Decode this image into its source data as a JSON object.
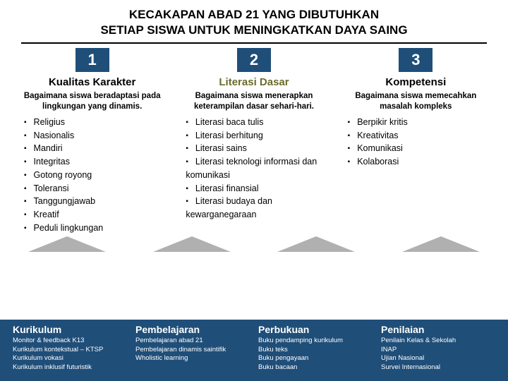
{
  "header": {
    "line1": "KECAKAPAN ABAD 21 YANG DIBUTUHKAN",
    "line2": "SETIAP SISWA UNTUK MENINGKATKAN DAYA SAING"
  },
  "columns": [
    {
      "num": "1",
      "title": "Kualitas Karakter",
      "desc": "Bagaimana siswa beradaptasi pada lingkungan yang dinamis.",
      "items": [
        "Religius",
        "Nasionalis",
        "Mandiri",
        "Integritas",
        "Gotong royong",
        "Toleransi",
        "Tanggungjawab",
        "Kreatif",
        "Peduli lingkungan"
      ]
    },
    {
      "num": "2",
      "title": "Literasi Dasar",
      "desc": "Bagaimana siswa menerapkan keterampilan dasar sehari-hari.",
      "items": [
        "Literasi baca tulis",
        "Literasi berhitung",
        "Literasi sains",
        "Literasi teknologi informasi dan komunikasi",
        "Literasi finansial",
        "Literasi budaya dan kewarganegaraan"
      ]
    },
    {
      "num": "3",
      "title": "Kompetensi",
      "desc": "Bagaimana siswa memecahkan masalah kompleks",
      "items": [
        "Berpikir kritis",
        "Kreativitas",
        "Komunikasi",
        "Kolaborasi"
      ]
    }
  ],
  "footer": [
    {
      "title": "Kurikulum",
      "items": [
        "Monitor & feedback K13",
        "Kurikulum kontekstual – KTSP",
        "Kurikulum vokasi",
        "Kurikulum inklusif futuristik"
      ]
    },
    {
      "title": "Pembelajaran",
      "items": [
        "Pembelajaran abad 21",
        "Pembelajaran dinamis saintifik",
        "Wholistic learning"
      ]
    },
    {
      "title": "Perbukuan",
      "items": [
        "Buku pendamping kurikulum",
        "Buku teks",
        "Buku pengayaan",
        "Buku bacaan"
      ]
    },
    {
      "title": "Penilaian",
      "items": [
        "Penilain Kelas & Sekolah",
        "INAP",
        "Ujian Nasional",
        "Survei Internasional"
      ]
    }
  ],
  "colors": {
    "banner": "#1f4e79",
    "olive": "#6b6b2d",
    "arrow": "#b0b0b0"
  }
}
